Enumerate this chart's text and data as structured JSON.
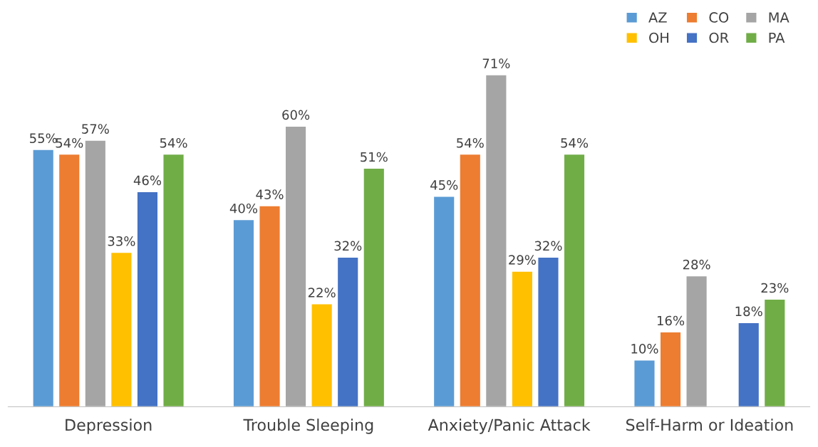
{
  "chart_data": {
    "type": "bar",
    "categories": [
      "Depression",
      "Trouble Sleeping",
      "Anxiety/Panic Attack",
      "Self-Harm or Ideation"
    ],
    "series": [
      {
        "name": "AZ",
        "color": "#5b9bd5",
        "values": [
          55,
          40,
          45,
          10
        ],
        "value_labels": [
          "55%",
          "40%",
          "45%",
          "10%"
        ]
      },
      {
        "name": "CO",
        "color": "#ed7d31",
        "values": [
          54,
          43,
          54,
          16
        ],
        "value_labels": [
          "54%",
          "43%",
          "54%",
          "16%"
        ]
      },
      {
        "name": "MA",
        "color": "#a5a5a5",
        "values": [
          57,
          60,
          71,
          28
        ],
        "value_labels": [
          "57%",
          "60%",
          "71%",
          "28%"
        ]
      },
      {
        "name": "OH",
        "color": "#ffc000",
        "values": [
          33,
          22,
          29,
          null
        ],
        "value_labels": [
          "33%",
          "22%",
          "29%",
          null
        ]
      },
      {
        "name": "OR",
        "color": "#4472c4",
        "values": [
          46,
          32,
          32,
          18
        ],
        "value_labels": [
          "46%",
          "32%",
          "32%",
          "18%"
        ]
      },
      {
        "name": "PA",
        "color": "#70ad47",
        "values": [
          54,
          51,
          54,
          23
        ],
        "value_labels": [
          "54%",
          "51%",
          "54%",
          "23%"
        ]
      }
    ],
    "tick_labels": "x",
    "legend": "top right"
  }
}
